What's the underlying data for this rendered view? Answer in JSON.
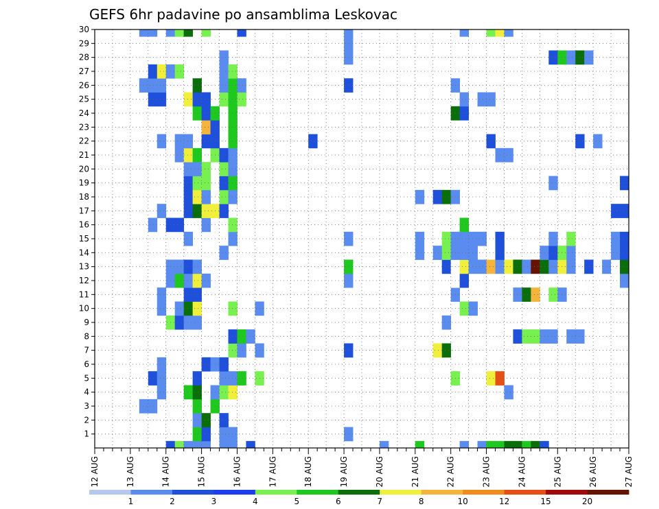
{
  "chart_data": {
    "type": "heatmap",
    "title": "GEFS 6hr padavine po ansamblima Leskovac",
    "xlabel": "",
    "ylabel": "",
    "x_tick_labels": [
      "12 AUG",
      "13 AUG",
      "14 AUG",
      "15 AUG",
      "16 AUG",
      "17 AUG",
      "18 AUG",
      "19 AUG",
      "20 AUG",
      "21 AUG",
      "22 AUG",
      "23 AUG",
      "24 AUG",
      "25 AUG",
      "26 AUG",
      "27 AUG"
    ],
    "y_tick_labels": [
      "1",
      "2",
      "3",
      "4",
      "5",
      "6",
      "7",
      "8",
      "9",
      "10",
      "11",
      "12",
      "13",
      "14",
      "15",
      "16",
      "17",
      "18",
      "19",
      "20",
      "21",
      "22",
      "23",
      "24",
      "25",
      "26",
      "27",
      "28",
      "29",
      "30"
    ],
    "ylim": [
      0,
      30
    ],
    "xlim_days_from_12aug": [
      0,
      15
    ],
    "grid": true,
    "colorbar": {
      "labels": [
        "1",
        "2",
        "3",
        "4",
        "5",
        "6",
        "7",
        "8",
        "10",
        "12",
        "15",
        "20"
      ],
      "colors": [
        "#b4c8f0",
        "#5a8cf0",
        "#1e50dc",
        "#1e3cf0",
        "#78f050",
        "#1ec81e",
        "#0a6e0a",
        "#f0f03c",
        "#f5b43c",
        "#f08c1e",
        "#e65014",
        "#a00a0a",
        "#641400"
      ]
    },
    "values": [
      [
        2.0,
        0,
        2
      ],
      [
        2.25,
        0,
        4
      ],
      [
        2.5,
        0,
        1
      ],
      [
        2.75,
        0,
        1
      ],
      [
        3.0,
        0,
        1
      ],
      [
        3.5,
        0,
        1
      ],
      [
        3.75,
        0,
        1
      ],
      [
        4.25,
        0,
        2
      ],
      [
        8.0,
        0,
        1
      ],
      [
        9.0,
        0,
        5
      ],
      [
        10.25,
        0,
        1
      ],
      [
        10.75,
        0,
        1
      ],
      [
        11.0,
        0,
        5
      ],
      [
        11.25,
        0,
        5
      ],
      [
        11.5,
        0,
        6
      ],
      [
        11.75,
        0,
        6
      ],
      [
        12.0,
        0,
        5
      ],
      [
        12.25,
        0,
        6
      ],
      [
        12.5,
        0,
        2
      ],
      [
        2.75,
        1,
        5
      ],
      [
        3.0,
        1,
        2
      ],
      [
        3.5,
        1,
        1
      ],
      [
        3.75,
        1,
        1
      ],
      [
        7.0,
        1,
        1
      ],
      [
        2.75,
        2,
        1
      ],
      [
        3.0,
        2,
        6
      ],
      [
        3.5,
        2,
        2
      ],
      [
        1.25,
        3,
        1
      ],
      [
        1.5,
        3,
        1
      ],
      [
        2.75,
        3,
        5
      ],
      [
        3.25,
        3,
        5
      ],
      [
        1.75,
        4,
        1
      ],
      [
        2.5,
        4,
        5
      ],
      [
        2.75,
        4,
        6
      ],
      [
        3.25,
        4,
        1
      ],
      [
        3.5,
        4,
        4
      ],
      [
        3.75,
        4,
        7
      ],
      [
        11.5,
        4,
        1
      ],
      [
        1.5,
        5,
        2
      ],
      [
        1.75,
        5,
        1
      ],
      [
        2.75,
        5,
        2
      ],
      [
        3.5,
        5,
        1
      ],
      [
        3.75,
        5,
        1
      ],
      [
        4.0,
        5,
        5
      ],
      [
        4.5,
        5,
        4
      ],
      [
        10.0,
        5,
        4
      ],
      [
        11.0,
        5,
        7
      ],
      [
        11.25,
        5,
        10
      ],
      [
        1.75,
        6,
        1
      ],
      [
        3.0,
        6,
        2
      ],
      [
        3.25,
        6,
        1
      ],
      [
        3.5,
        6,
        2
      ],
      [
        3.75,
        7,
        4
      ],
      [
        4.0,
        7,
        1
      ],
      [
        4.5,
        7,
        1
      ],
      [
        7.0,
        7,
        2
      ],
      [
        9.5,
        7,
        7
      ],
      [
        9.75,
        7,
        6
      ],
      [
        3.75,
        8,
        2
      ],
      [
        4.0,
        8,
        5
      ],
      [
        4.25,
        8,
        1
      ],
      [
        11.75,
        8,
        2
      ],
      [
        12.0,
        8,
        4
      ],
      [
        12.25,
        8,
        4
      ],
      [
        12.5,
        8,
        1
      ],
      [
        12.75,
        8,
        1
      ],
      [
        13.25,
        8,
        1
      ],
      [
        13.5,
        8,
        1
      ],
      [
        2.0,
        9,
        4
      ],
      [
        2.25,
        9,
        2
      ],
      [
        2.5,
        9,
        1
      ],
      [
        2.75,
        9,
        1
      ],
      [
        9.75,
        9,
        1
      ],
      [
        1.75,
        10,
        1
      ],
      [
        2.25,
        10,
        1
      ],
      [
        2.5,
        10,
        6
      ],
      [
        2.75,
        10,
        7
      ],
      [
        3.75,
        10,
        4
      ],
      [
        4.5,
        10,
        1
      ],
      [
        10.25,
        10,
        4
      ],
      [
        10.5,
        10,
        1
      ],
      [
        1.75,
        11,
        1
      ],
      [
        2.5,
        11,
        2
      ],
      [
        2.75,
        11,
        2
      ],
      [
        10.0,
        11,
        1
      ],
      [
        11.75,
        11,
        1
      ],
      [
        12.0,
        11,
        6
      ],
      [
        12.25,
        11,
        8
      ],
      [
        12.75,
        11,
        4
      ],
      [
        13.0,
        11,
        1
      ],
      [
        2.0,
        12,
        1
      ],
      [
        2.25,
        12,
        5
      ],
      [
        2.5,
        12,
        1
      ],
      [
        2.75,
        12,
        7
      ],
      [
        3.0,
        12,
        1
      ],
      [
        7.0,
        12,
        1
      ],
      [
        10.0,
        12,
        13
      ],
      [
        10.25,
        12,
        2
      ],
      [
        14.75,
        12,
        1
      ],
      [
        2.0,
        13,
        1
      ],
      [
        2.25,
        13,
        1
      ],
      [
        2.5,
        13,
        2
      ],
      [
        2.75,
        13,
        1
      ],
      [
        7.0,
        13,
        5
      ],
      [
        9.75,
        13,
        2
      ],
      [
        10.0,
        13,
        13
      ],
      [
        10.25,
        13,
        7
      ],
      [
        10.5,
        13,
        1
      ],
      [
        10.75,
        13,
        1
      ],
      [
        11.0,
        13,
        8
      ],
      [
        11.25,
        13,
        1
      ],
      [
        11.5,
        13,
        7
      ],
      [
        11.75,
        13,
        6
      ],
      [
        12.0,
        13,
        1
      ],
      [
        12.25,
        13,
        12
      ],
      [
        12.5,
        13,
        6
      ],
      [
        12.75,
        13,
        1
      ],
      [
        13.0,
        13,
        7
      ],
      [
        13.25,
        13,
        1
      ],
      [
        13.75,
        13,
        2
      ],
      [
        14.25,
        13,
        1
      ],
      [
        14.5,
        13,
        13
      ],
      [
        14.75,
        13,
        6
      ],
      [
        15.0,
        13,
        2
      ],
      [
        3.5,
        14,
        1
      ],
      [
        9.0,
        14,
        1
      ],
      [
        9.5,
        14,
        1
      ],
      [
        9.75,
        14,
        4
      ],
      [
        10.0,
        14,
        1
      ],
      [
        10.25,
        14,
        1
      ],
      [
        10.5,
        14,
        1
      ],
      [
        11.25,
        14,
        2
      ],
      [
        12.5,
        14,
        1
      ],
      [
        12.75,
        14,
        2
      ],
      [
        13.0,
        14,
        4
      ],
      [
        13.25,
        14,
        1
      ],
      [
        14.5,
        14,
        1
      ],
      [
        14.75,
        14,
        2
      ],
      [
        15.0,
        14,
        2
      ],
      [
        2.5,
        15,
        1
      ],
      [
        3.75,
        15,
        1
      ],
      [
        7.0,
        15,
        1
      ],
      [
        9.0,
        15,
        1
      ],
      [
        9.75,
        15,
        4
      ],
      [
        10.0,
        15,
        1
      ],
      [
        10.25,
        15,
        1
      ],
      [
        10.5,
        15,
        1
      ],
      [
        10.75,
        15,
        1
      ],
      [
        11.25,
        15,
        2
      ],
      [
        12.75,
        15,
        1
      ],
      [
        13.25,
        15,
        4
      ],
      [
        14.5,
        15,
        1
      ],
      [
        14.75,
        15,
        2
      ],
      [
        15.0,
        15,
        2
      ],
      [
        15.25,
        15,
        1
      ],
      [
        1.5,
        16,
        1
      ],
      [
        2.0,
        16,
        2
      ],
      [
        2.25,
        16,
        2
      ],
      [
        3.0,
        16,
        1
      ],
      [
        3.75,
        16,
        4
      ],
      [
        10.25,
        16,
        5
      ],
      [
        1.75,
        17,
        1
      ],
      [
        2.5,
        17,
        2
      ],
      [
        2.75,
        17,
        6
      ],
      [
        3.0,
        17,
        7
      ],
      [
        3.25,
        17,
        7
      ],
      [
        3.5,
        17,
        2
      ],
      [
        14.5,
        17,
        2
      ],
      [
        14.75,
        17,
        2
      ],
      [
        2.5,
        18,
        2
      ],
      [
        2.75,
        18,
        7
      ],
      [
        3.0,
        18,
        1
      ],
      [
        3.5,
        18,
        4
      ],
      [
        3.75,
        18,
        1
      ],
      [
        9.0,
        18,
        1
      ],
      [
        9.5,
        18,
        2
      ],
      [
        9.75,
        18,
        6
      ],
      [
        10.0,
        18,
        1
      ],
      [
        2.5,
        19,
        2
      ],
      [
        2.75,
        19,
        4
      ],
      [
        3.0,
        19,
        4
      ],
      [
        3.5,
        19,
        2
      ],
      [
        3.75,
        19,
        5
      ],
      [
        12.75,
        19,
        1
      ],
      [
        14.75,
        19,
        2
      ],
      [
        15.0,
        19,
        7
      ],
      [
        15.75,
        19,
        11
      ],
      [
        2.5,
        20,
        1
      ],
      [
        2.75,
        20,
        1
      ],
      [
        3.0,
        20,
        4
      ],
      [
        3.5,
        20,
        4
      ],
      [
        3.75,
        20,
        1
      ],
      [
        2.25,
        21,
        1
      ],
      [
        2.5,
        21,
        7
      ],
      [
        2.75,
        21,
        5
      ],
      [
        3.25,
        21,
        4
      ],
      [
        3.5,
        21,
        2
      ],
      [
        3.75,
        21,
        1
      ],
      [
        11.25,
        21,
        1
      ],
      [
        11.5,
        21,
        1
      ],
      [
        1.75,
        22,
        1
      ],
      [
        2.25,
        22,
        1
      ],
      [
        2.5,
        22,
        1
      ],
      [
        3.0,
        22,
        2
      ],
      [
        3.25,
        22,
        2
      ],
      [
        3.75,
        22,
        5
      ],
      [
        6.0,
        22,
        2
      ],
      [
        11.0,
        22,
        2
      ],
      [
        13.5,
        22,
        2
      ],
      [
        14.0,
        22,
        1
      ],
      [
        3.0,
        23,
        8
      ],
      [
        3.25,
        23,
        2
      ],
      [
        3.75,
        23,
        5
      ],
      [
        2.75,
        24,
        5
      ],
      [
        3.0,
        24,
        2
      ],
      [
        3.25,
        24,
        5
      ],
      [
        3.75,
        24,
        5
      ],
      [
        10.0,
        24,
        6
      ],
      [
        10.25,
        24,
        2
      ],
      [
        1.5,
        25,
        2
      ],
      [
        1.75,
        25,
        2
      ],
      [
        2.5,
        25,
        7
      ],
      [
        2.75,
        25,
        2
      ],
      [
        3.0,
        25,
        2
      ],
      [
        3.5,
        25,
        4
      ],
      [
        3.75,
        25,
        5
      ],
      [
        4.0,
        25,
        4
      ],
      [
        10.25,
        25,
        1
      ],
      [
        10.75,
        25,
        1
      ],
      [
        11.0,
        25,
        1
      ],
      [
        1.25,
        26,
        1
      ],
      [
        1.5,
        26,
        1
      ],
      [
        1.75,
        26,
        1
      ],
      [
        2.75,
        26,
        6
      ],
      [
        3.5,
        26,
        1
      ],
      [
        3.75,
        26,
        5
      ],
      [
        4.0,
        26,
        1
      ],
      [
        7.0,
        26,
        2
      ],
      [
        10.0,
        26,
        1
      ],
      [
        1.5,
        27,
        2
      ],
      [
        1.75,
        27,
        7
      ],
      [
        2.0,
        27,
        1
      ],
      [
        2.25,
        27,
        4
      ],
      [
        3.5,
        27,
        1
      ],
      [
        3.75,
        27,
        4
      ],
      [
        3.5,
        28,
        1
      ],
      [
        7.0,
        28,
        1
      ],
      [
        12.75,
        28,
        2
      ],
      [
        13.0,
        28,
        5
      ],
      [
        13.25,
        28,
        1
      ],
      [
        13.5,
        28,
        6
      ],
      [
        13.75,
        28,
        1
      ],
      [
        7.0,
        29,
        1
      ],
      [
        1.25,
        30,
        1
      ],
      [
        1.5,
        30,
        1
      ],
      [
        2.0,
        30,
        1
      ],
      [
        2.25,
        30,
        4
      ],
      [
        2.5,
        30,
        6
      ],
      [
        3.0,
        30,
        4
      ],
      [
        4.0,
        30,
        2
      ],
      [
        7.0,
        30,
        1
      ],
      [
        10.25,
        30,
        1
      ],
      [
        11.0,
        30,
        4
      ],
      [
        11.25,
        30,
        7
      ],
      [
        11.5,
        30,
        1
      ],
      [
        1.5,
        31,
        2
      ],
      [
        1.75,
        31,
        2
      ],
      [
        2.25,
        31,
        1
      ],
      [
        2.5,
        31,
        5
      ],
      [
        3.0,
        31,
        4
      ],
      [
        3.75,
        31,
        2
      ],
      [
        6.0,
        31,
        1
      ],
      [
        7.0,
        31,
        2
      ],
      [
        10.25,
        31,
        2
      ],
      [
        10.5,
        31,
        5
      ],
      [
        10.75,
        31,
        5
      ],
      [
        11.5,
        31,
        2
      ],
      [
        11.75,
        31,
        2
      ]
    ]
  }
}
